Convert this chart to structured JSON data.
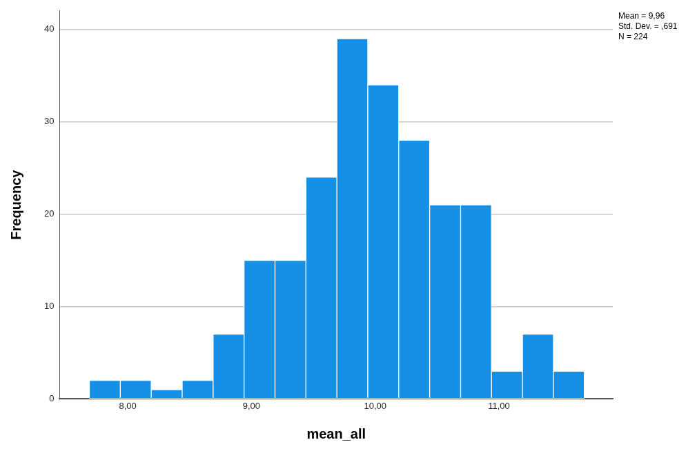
{
  "chart_data": {
    "type": "histogram",
    "xlabel": "mean_all",
    "ylabel": "Frequency",
    "bins": [
      7.69,
      7.94,
      8.19,
      8.44,
      8.69,
      8.94,
      9.19,
      9.44,
      9.69,
      9.94,
      10.19,
      10.44,
      10.69,
      10.94,
      11.19,
      11.44,
      11.69
    ],
    "values": [
      2,
      2,
      1,
      2,
      7,
      15,
      15,
      24,
      39,
      34,
      28,
      21,
      21,
      3,
      7,
      3
    ],
    "color": "#1590e6",
    "xlim": [
      7.45,
      11.92
    ],
    "xticks": [
      {
        "value": 8,
        "label": "8,00"
      },
      {
        "value": 9,
        "label": "9,00"
      },
      {
        "value": 10,
        "label": "10,00"
      },
      {
        "value": 11,
        "label": "11,00"
      }
    ],
    "ylim": [
      0,
      42
    ],
    "yticks": [
      0,
      10,
      20,
      30,
      40
    ],
    "grid": "y",
    "annotations": [
      "Mean = 9,96",
      "Std. Dev. = ,691",
      "N = 224"
    ]
  }
}
